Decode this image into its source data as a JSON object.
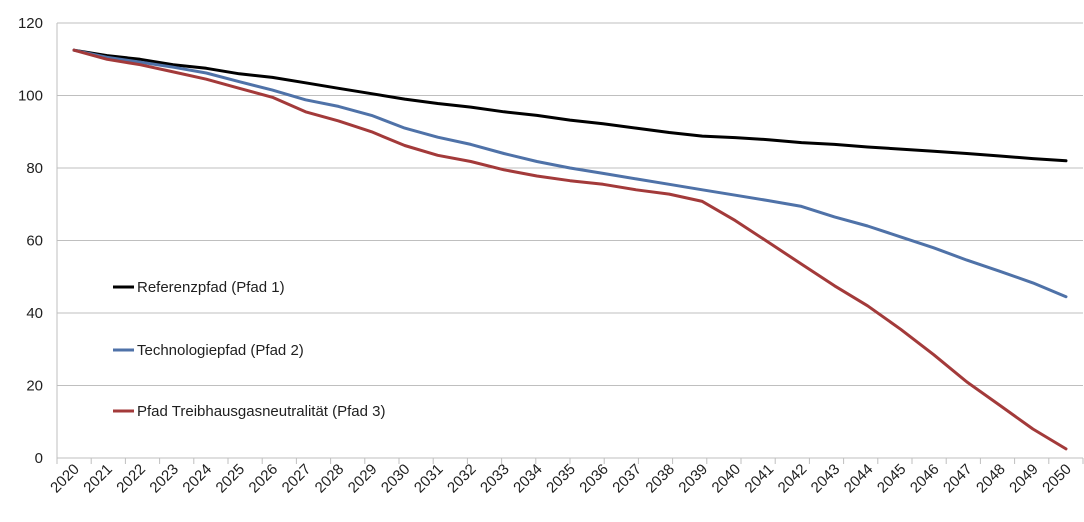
{
  "chart_data": {
    "type": "line",
    "title": "",
    "xlabel": "",
    "ylabel": "",
    "ylim": [
      0,
      120
    ],
    "y_ticks": [
      "0",
      "20",
      "40",
      "60",
      "80",
      "100",
      "120"
    ],
    "categories": [
      "2020",
      "2021",
      "2022",
      "2023",
      "2024",
      "2025",
      "2026",
      "2027",
      "2028",
      "2029",
      "2030",
      "2031",
      "2032",
      "2033",
      "2034",
      "2035",
      "2036",
      "2037",
      "2038",
      "2039",
      "2040",
      "2041",
      "2042",
      "2043",
      "2044",
      "2045",
      "2046",
      "2047",
      "2048",
      "2049",
      "2050"
    ],
    "grid": "horizontal",
    "legend_position": "left-middle",
    "series": [
      {
        "name": "Referenzpfad (Pfad 1)",
        "color": "#000000",
        "values": [
          112.5,
          111,
          110,
          108.5,
          107.5,
          106,
          105,
          103.5,
          102,
          100.5,
          99,
          97.8,
          96.8,
          95.5,
          94.5,
          93.2,
          92.2,
          91,
          89.8,
          88.8,
          88.4,
          87.8,
          87,
          86.5,
          85.8,
          85.2,
          84.6,
          84,
          83.3,
          82.6,
          82
        ]
      },
      {
        "name": "Technologiepfad (Pfad 2)",
        "color": "#4f72a8",
        "values": [
          112.5,
          110.5,
          109.2,
          107.8,
          106.2,
          103.8,
          101.5,
          98.8,
          97,
          94.5,
          91,
          88.5,
          86.5,
          84,
          81.8,
          80,
          78.5,
          77,
          75.5,
          74,
          72.5,
          71,
          69.4,
          66.5,
          64,
          61,
          58,
          54.6,
          51.5,
          48.3,
          44.5
        ]
      },
      {
        "name": "Pfad Treibhausgasneutralität (Pfad 3)",
        "color": "#a33a3a",
        "values": [
          112.5,
          110,
          108.5,
          106.5,
          104.5,
          102,
          99.5,
          95.5,
          93,
          90,
          86.2,
          83.5,
          81.8,
          79.5,
          77.8,
          76.5,
          75.5,
          74,
          72.8,
          70.8,
          65.5,
          59.5,
          53.5,
          47.5,
          42,
          35.5,
          28.5,
          21,
          14.5,
          8,
          2.5
        ]
      }
    ]
  }
}
